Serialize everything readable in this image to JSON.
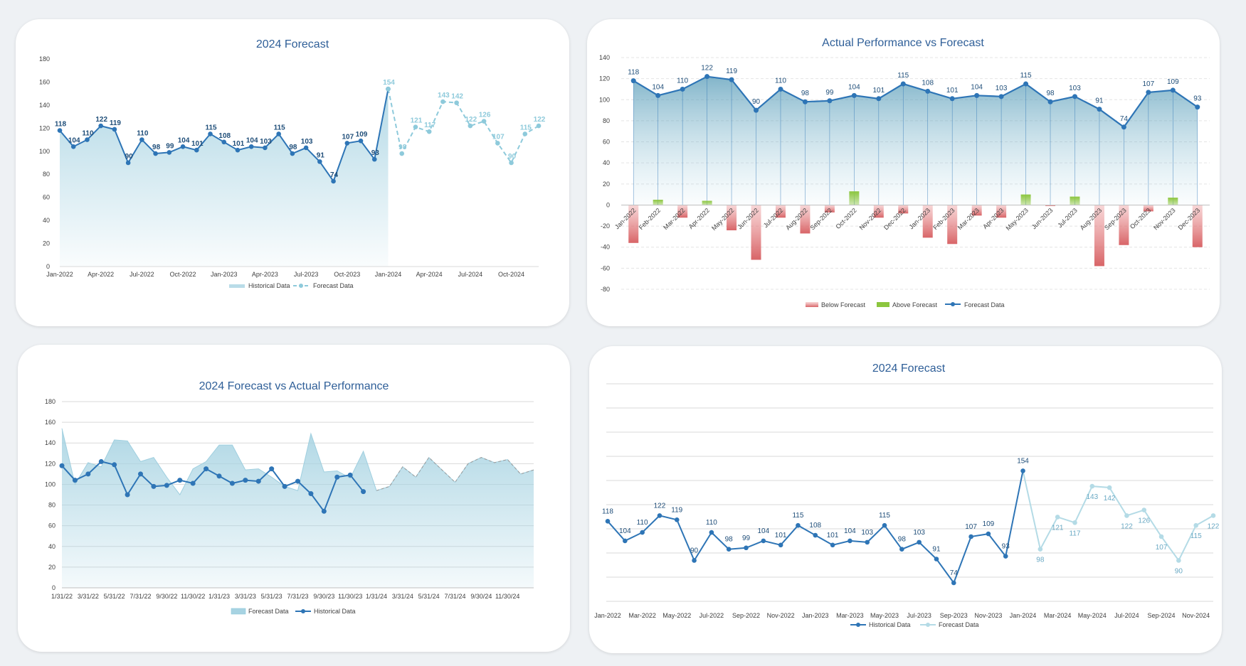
{
  "colors": {
    "dark": "#2e75b6",
    "navy": "#1f4e79",
    "light": "#8ecadb",
    "fill": "#a7d3e2",
    "red": "#e8888a",
    "green": "#8cc63f",
    "grid": "#d9d9d9",
    "title": "#2f5f98"
  },
  "chart_data": [
    {
      "id": "chart1",
      "type": "area",
      "title": "2024 Forecast",
      "ylim": [
        0,
        180
      ],
      "yticks": [
        0,
        20,
        40,
        60,
        80,
        100,
        120,
        140,
        160,
        180
      ],
      "xtick_labels": [
        "Jan-2022",
        "Apr-2022",
        "Jul-2022",
        "Oct-2022",
        "Jan-2023",
        "Apr-2023",
        "Jul-2023",
        "Oct-2023",
        "Jan-2024",
        "Apr-2024",
        "Jul-2024",
        "Oct-2024"
      ],
      "historical": [
        118,
        104,
        110,
        122,
        119,
        90,
        110,
        98,
        99,
        104,
        101,
        115,
        108,
        101,
        104,
        103,
        115,
        98,
        103,
        91,
        74,
        107,
        109,
        93,
        154
      ],
      "forecast": [
        154,
        98,
        121,
        117,
        143,
        142,
        122,
        126,
        107,
        90,
        115,
        122
      ],
      "legend": [
        "Historical Data",
        "Forecast Data"
      ]
    },
    {
      "id": "chart2",
      "type": "bar+line",
      "title": "Actual Performance vs Forecast",
      "ylim": [
        -80,
        140
      ],
      "yticks": [
        -80,
        -60,
        -40,
        -20,
        0,
        20,
        40,
        60,
        80,
        100,
        120,
        140
      ],
      "categories": [
        "Jan-2022",
        "Feb-2022",
        "Mar-2022",
        "Apr-2022",
        "May-2022",
        "Jun-2022",
        "Jul-2022",
        "Aug-2022",
        "Sep-2022",
        "Oct-2022",
        "Nov-2022",
        "Dec-2022",
        "Jan-2023",
        "Feb-2023",
        "Mar-2023",
        "Apr-2023",
        "May-2023",
        "Jun-2023",
        "Jul-2023",
        "Aug-2023",
        "Sep-2023",
        "Oct-2023",
        "Nov-2023",
        "Dec-2023"
      ],
      "forecast_line": [
        118,
        104,
        110,
        122,
        119,
        90,
        110,
        98,
        99,
        104,
        101,
        115,
        108,
        101,
        104,
        103,
        115,
        98,
        103,
        91,
        74,
        107,
        109,
        93
      ],
      "diff": [
        -36,
        5,
        -12,
        4,
        -24,
        -52,
        -12,
        -27,
        -7,
        13,
        -12,
        -8,
        -31,
        -37,
        -10,
        -12,
        10,
        -1,
        8,
        -58,
        -38,
        -6,
        7,
        -40
      ],
      "legend": [
        "Below Forecast",
        "Above Forecast",
        "Forecast Data"
      ]
    },
    {
      "id": "chart3",
      "type": "area+line",
      "title": "2024 Forecast vs Actual Performance",
      "ylim": [
        0,
        180
      ],
      "yticks": [
        0,
        20,
        40,
        60,
        80,
        100,
        120,
        140,
        160,
        180
      ],
      "xtick_labels": [
        "1/31/22",
        "3/31/22",
        "5/31/22",
        "7/31/22",
        "9/30/22",
        "11/30/22",
        "1/31/23",
        "3/31/23",
        "5/31/23",
        "7/31/23",
        "9/30/23",
        "11/30/23",
        "1/31/24",
        "3/31/24",
        "5/31/24",
        "7/31/24",
        "9/30/24",
        "11/30/24"
      ],
      "forecast": [
        154,
        100,
        121,
        117,
        143,
        142,
        122,
        126,
        107,
        90,
        115,
        122,
        138,
        138,
        114,
        115,
        107,
        98,
        94,
        149,
        112,
        113,
        106,
        132,
        94,
        98,
        117,
        107,
        126,
        114,
        102,
        120,
        126,
        121,
        124,
        110,
        114
      ],
      "historical": [
        118,
        104,
        110,
        122,
        119,
        90,
        110,
        98,
        99,
        104,
        101,
        115,
        108,
        101,
        104,
        103,
        115,
        98,
        103,
        91,
        74,
        107,
        109,
        93
      ],
      "legend": [
        "Forecast Data",
        "Historical Data"
      ]
    },
    {
      "id": "chart4",
      "type": "line",
      "title": "2024 Forecast",
      "xtick_labels": [
        "Jan-2022",
        "Mar-2022",
        "May-2022",
        "Jul-2022",
        "Sep-2022",
        "Nov-2022",
        "Jan-2023",
        "Mar-2023",
        "May-2023",
        "Jul-2023",
        "Sep-2023",
        "Nov-2023",
        "Jan-2024",
        "Mar-2024",
        "May-2024",
        "Jul-2024",
        "Sep-2024",
        "Nov-2024"
      ],
      "historical": [
        118,
        104,
        110,
        122,
        119,
        90,
        110,
        98,
        99,
        104,
        101,
        115,
        108,
        101,
        104,
        103,
        115,
        98,
        103,
        91,
        74,
        107,
        109,
        93,
        154
      ],
      "forecast": [
        154,
        98,
        121,
        117,
        143,
        142,
        122,
        126,
        107,
        90,
        115,
        122
      ],
      "legend": [
        "Historical Data",
        "Forecast Data"
      ]
    }
  ]
}
